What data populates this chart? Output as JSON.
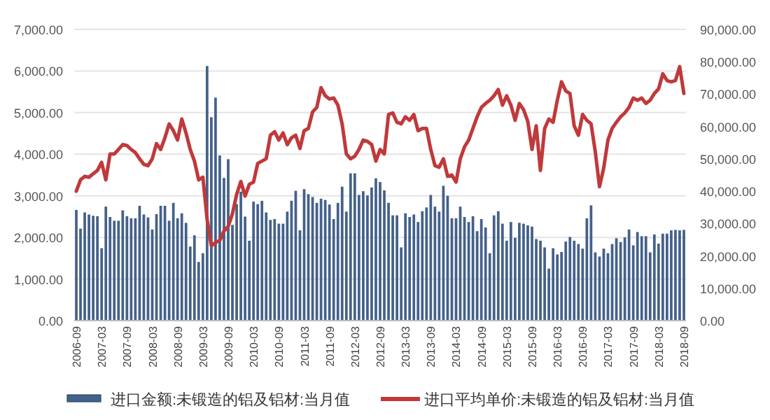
{
  "chart_data": {
    "type": "bar",
    "categories": [
      "2006-09",
      null,
      null,
      null,
      null,
      null,
      "2007-03",
      null,
      null,
      null,
      null,
      null,
      "2007-09",
      null,
      null,
      null,
      null,
      null,
      "2008-03",
      null,
      null,
      null,
      null,
      null,
      "2008-09",
      null,
      null,
      null,
      null,
      null,
      "2009-03",
      null,
      null,
      null,
      null,
      null,
      "2009-09",
      null,
      null,
      null,
      null,
      null,
      "2010-03",
      null,
      null,
      null,
      null,
      null,
      "2010-09",
      null,
      null,
      null,
      null,
      null,
      "2011-03",
      null,
      null,
      null,
      null,
      null,
      "2011-09",
      null,
      null,
      null,
      null,
      null,
      "2012-03",
      null,
      null,
      null,
      null,
      null,
      "2012-09",
      null,
      null,
      null,
      null,
      null,
      "2013-03",
      null,
      null,
      null,
      null,
      null,
      "2013-09",
      null,
      null,
      null,
      null,
      null,
      "2014-03",
      null,
      null,
      null,
      null,
      null,
      "2014-09",
      null,
      null,
      null,
      null,
      null,
      "2015-03",
      null,
      null,
      null,
      null,
      null,
      "2015-09",
      null,
      null,
      null,
      null,
      null,
      "2016-03",
      null,
      null,
      null,
      null,
      null,
      "2016-09",
      null,
      null,
      null,
      null,
      null,
      "2017-03",
      null,
      null,
      null,
      null,
      null,
      "2017-09",
      null,
      null,
      null,
      null,
      null,
      "2018-03",
      null,
      null,
      null,
      null,
      null,
      "2018-09"
    ],
    "series": [
      {
        "name": "进口金额:未锻造的铝及铝材:当月值",
        "type": "bar",
        "color": "#44618a",
        "values": [
          2660,
          2210,
          2600,
          2550,
          2520,
          2510,
          1740,
          2740,
          2490,
          2400,
          2400,
          2650,
          2510,
          2460,
          2460,
          2760,
          2550,
          2480,
          2190,
          2560,
          2760,
          2760,
          2400,
          2830,
          2460,
          2580,
          2350,
          1780,
          2050,
          1410,
          1620,
          6120,
          4890,
          5360,
          3970,
          3430,
          3880,
          2300,
          2800,
          3100,
          2500,
          1920,
          2860,
          2800,
          2880,
          2600,
          2420,
          2440,
          2330,
          2330,
          2620,
          2880,
          3120,
          2170,
          3160,
          3040,
          2970,
          2830,
          2930,
          2900,
          2790,
          2440,
          2830,
          3220,
          2620,
          3540,
          3540,
          3020,
          3110,
          3010,
          3200,
          3420,
          3330,
          3130,
          2830,
          2530,
          2530,
          1760,
          2580,
          2490,
          2550,
          2370,
          2630,
          2720,
          3020,
          2740,
          2620,
          3240,
          3000,
          2460,
          2460,
          2740,
          2490,
          2370,
          2510,
          2150,
          2440,
          2240,
          1620,
          2530,
          2630,
          2330,
          1920,
          2370,
          1990,
          2350,
          2330,
          2290,
          2260,
          1960,
          1920,
          1760,
          1250,
          1740,
          1590,
          1650,
          1900,
          2010,
          1920,
          1840,
          1730,
          2460,
          2770,
          1640,
          1540,
          1730,
          1620,
          1840,
          1980,
          1890,
          2000,
          2190,
          1810,
          2130,
          2030,
          2030,
          1640,
          2070,
          1850,
          2090,
          2090,
          2170,
          2180,
          2170,
          2180
        ]
      },
      {
        "name": "进口平均单价:未锻造的铝及铝材:当月值",
        "type": "line",
        "axis": "y2",
        "color": "#c0393b",
        "values": [
          40000,
          43500,
          44600,
          44300,
          45400,
          46400,
          48900,
          43500,
          51500,
          51500,
          52900,
          54400,
          54100,
          52900,
          51900,
          50000,
          48300,
          47900,
          50000,
          54700,
          52900,
          56500,
          60800,
          58700,
          55800,
          62300,
          58000,
          52900,
          49300,
          43500,
          44300,
          31300,
          23100,
          24100,
          24800,
          27700,
          29100,
          33000,
          39000,
          43000,
          38500,
          42100,
          42800,
          48600,
          49300,
          50000,
          57300,
          58400,
          55800,
          58000,
          54400,
          56500,
          57300,
          53200,
          58700,
          59400,
          64500,
          65900,
          72000,
          69500,
          68500,
          68800,
          66600,
          60800,
          51500,
          50000,
          50800,
          52900,
          55800,
          55400,
          54400,
          49300,
          52900,
          51500,
          63700,
          64200,
          61300,
          60800,
          63000,
          61900,
          63700,
          58700,
          59400,
          59400,
          52900,
          47900,
          47400,
          50000,
          44600,
          45000,
          42800,
          50000,
          53700,
          55800,
          59400,
          63000,
          65900,
          67100,
          68100,
          69500,
          71400,
          66600,
          69500,
          66600,
          61900,
          67100,
          65200,
          61600,
          52900,
          60200,
          46400,
          59400,
          62300,
          61300,
          68100,
          73800,
          71000,
          70200,
          60200,
          57300,
          63700,
          61900,
          60800,
          52200,
          41400,
          47200,
          55800,
          59400,
          61300,
          63000,
          64200,
          65900,
          68800,
          68100,
          68800,
          67100,
          68100,
          70200,
          71600,
          76300,
          74200,
          73800,
          74200,
          78500,
          70200
        ]
      }
    ],
    "ylim": [
      0,
      7000
    ],
    "yticks": [
      {
        "value": 0,
        "label": "0.00"
      },
      {
        "value": 1000,
        "label": "1,000.00"
      },
      {
        "value": 2000,
        "label": "2,000.00"
      },
      {
        "value": 3000,
        "label": "3,000.00"
      },
      {
        "value": 4000,
        "label": "4,000.00"
      },
      {
        "value": 5000,
        "label": "5,000.00"
      },
      {
        "value": 6000,
        "label": "6,000.00"
      },
      {
        "value": 7000,
        "label": "7,000.00"
      }
    ],
    "y2lim": [
      0,
      90000
    ],
    "y2ticks": [
      {
        "value": 0,
        "label": "0.00"
      },
      {
        "value": 10000,
        "label": "10,000.00"
      },
      {
        "value": 20000,
        "label": "20,000.00"
      },
      {
        "value": 30000,
        "label": "30,000.00"
      },
      {
        "value": 40000,
        "label": "40,000.00"
      },
      {
        "value": 50000,
        "label": "50,000.00"
      },
      {
        "value": 60000,
        "label": "60,000.00"
      },
      {
        "value": 70000,
        "label": "70,000.00"
      },
      {
        "value": 80000,
        "label": "80,000.00"
      },
      {
        "value": 90000,
        "label": "90,000.00"
      }
    ],
    "grid": "y",
    "legend": "bottom"
  }
}
